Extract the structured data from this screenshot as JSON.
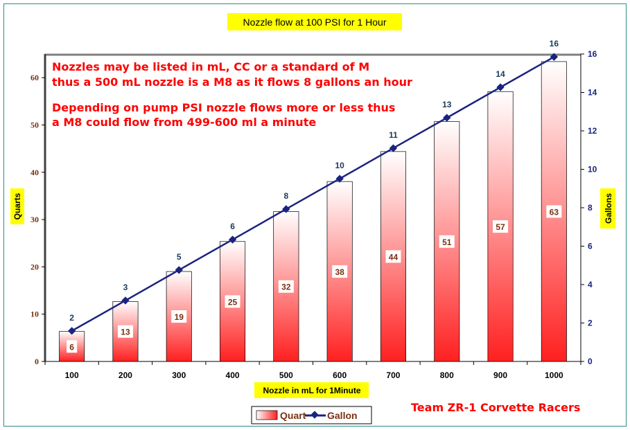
{
  "chart_data": {
    "type": "bar+line",
    "title": "Nozzle flow at 100 PSI for 1 Hour",
    "xlabel": "Nozzle in mL for 1Minute",
    "ylabel": "Quarts",
    "y2label": "Gallons",
    "categories": [
      "100",
      "200",
      "300",
      "400",
      "500",
      "600",
      "700",
      "800",
      "900",
      "1000"
    ],
    "series": [
      {
        "name": "Quart",
        "type": "bar",
        "axis": "left",
        "values": [
          6.34,
          12.68,
          19.02,
          25.36,
          31.7,
          38.04,
          44.38,
          50.72,
          57.06,
          63.4
        ],
        "labels": [
          "6",
          "13",
          "19",
          "25",
          "32",
          "38",
          "44",
          "51",
          "57",
          "63"
        ]
      },
      {
        "name": "Gallon",
        "type": "line",
        "axis": "right",
        "values": [
          1.59,
          3.17,
          4.76,
          6.34,
          7.93,
          9.51,
          11.1,
          12.68,
          14.27,
          15.85
        ],
        "labels": [
          "2",
          "3",
          "5",
          "6",
          "8",
          "10",
          "11",
          "13",
          "14",
          "16"
        ]
      }
    ],
    "ylim": [
      0,
      65
    ],
    "yticks": [
      "0",
      "10",
      "20",
      "30",
      "40",
      "50",
      "60"
    ],
    "y2lim": [
      0,
      16
    ],
    "y2ticks": [
      "0",
      "2",
      "4",
      "6",
      "8",
      "10",
      "12",
      "14",
      "16"
    ],
    "grid": false,
    "legend_position": "bottom",
    "annotations": [
      "Nozzles may be listed in mL, CC or a standard of M",
      "thus a 500 mL nozzle is a M8 as it flows 8 gallons an hour",
      "Depending on pump PSI nozzle flows more or less thus",
      "a M8 could flow from 499-600 ml a minute",
      "Team ZR-1 Corvette Racers"
    ],
    "colors": {
      "bar_dark": "#ff2020",
      "bar_light": "#ffffff",
      "line": "#1a237e",
      "note": "#ff0000"
    }
  }
}
